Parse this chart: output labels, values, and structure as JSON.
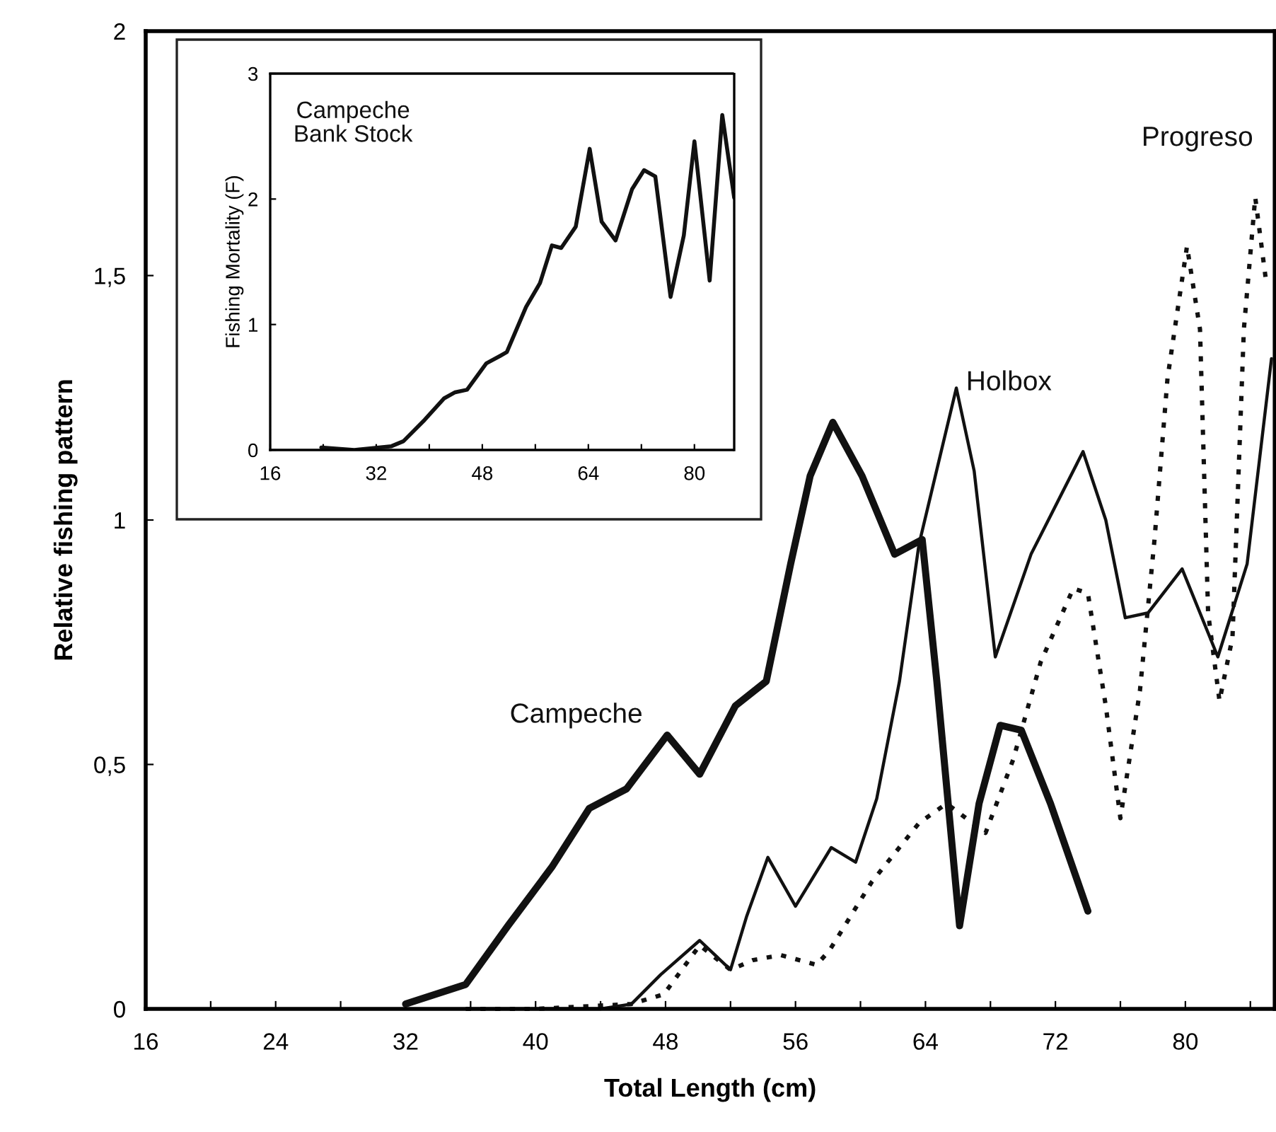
{
  "chart_data": [
    {
      "type": "line",
      "xlabel": "Total Length (cm)",
      "ylabel": "Relative fishing pattern",
      "xlim": [
        16,
        85.5
      ],
      "ylim": [
        0,
        2
      ],
      "xticks": [
        16,
        {
          "value": 20,
          "label": null
        },
        24,
        {
          "value": 28,
          "label": null
        },
        32,
        {
          "value": 36,
          "label": null
        },
        40,
        {
          "value": 44,
          "label": null
        },
        48,
        {
          "value": 52,
          "label": null
        },
        56,
        {
          "value": 60,
          "label": null
        },
        64,
        {
          "value": 68,
          "label": null
        },
        72,
        {
          "value": 76,
          "label": null
        },
        80,
        {
          "value": 84,
          "label": null
        }
      ],
      "yticks": [
        0,
        {
          "value": 0.5,
          "label": "0,5"
        },
        1,
        {
          "value": 1.5,
          "label": "1,5"
        },
        2
      ],
      "grid": false,
      "legend": false,
      "marker": "none",
      "series": [
        {
          "name": "Campeche",
          "color": "#111111",
          "line_style": "solid",
          "x": [
            32.0,
            35.7,
            38.3,
            41.0,
            43.3,
            45.6,
            48.1,
            50.1,
            52.3,
            54.2,
            55.7,
            56.9,
            58.3,
            60.1,
            62.1,
            63.8,
            64.7,
            66.1,
            67.3,
            68.6,
            69.9,
            71.7,
            74.0
          ],
          "values": [
            0.01,
            0.05,
            0.17,
            0.29,
            0.41,
            0.45,
            0.56,
            0.48,
            0.62,
            0.67,
            0.91,
            1.09,
            1.2,
            1.09,
            0.93,
            0.96,
            0.67,
            0.17,
            0.42,
            0.58,
            0.57,
            0.42,
            0.2
          ]
        },
        {
          "name": "Holbox",
          "color": "#111111",
          "line_style": "solid",
          "x": [
            36.0,
            40.0,
            44.0,
            45.9,
            47.7,
            50.1,
            52.0,
            53.0,
            54.3,
            56.0,
            58.2,
            59.7,
            61.0,
            62.4,
            63.6,
            65.9,
            67.0,
            68.3,
            70.5,
            73.7,
            75.1,
            76.3,
            77.7,
            79.8,
            82.0,
            83.8,
            85.3
          ],
          "values": [
            0.0,
            0.0,
            0.0,
            0.01,
            0.07,
            0.14,
            0.08,
            0.19,
            0.31,
            0.21,
            0.33,
            0.3,
            0.43,
            0.67,
            0.95,
            1.27,
            1.1,
            0.72,
            0.93,
            1.14,
            1.0,
            0.8,
            0.81,
            0.9,
            0.72,
            0.91,
            1.33
          ]
        },
        {
          "name": "Progreso",
          "color": "#111111",
          "line_style": "dotted",
          "x": [
            35.7,
            40.0,
            45.9,
            47.9,
            50.1,
            52.0,
            53.4,
            55.1,
            57.3,
            58.1,
            60.7,
            63.6,
            65.3,
            67.7,
            69.4,
            71.1,
            73.1,
            74.0,
            75.1,
            76.0,
            77.2,
            78.1,
            78.9,
            80.1,
            80.9,
            81.4,
            82.1,
            82.9,
            83.6,
            84.3,
            85.0
          ],
          "values": [
            0.0,
            0.0,
            0.01,
            0.03,
            0.13,
            0.08,
            0.1,
            0.11,
            0.09,
            0.12,
            0.26,
            0.38,
            0.42,
            0.36,
            0.51,
            0.71,
            0.86,
            0.85,
            0.62,
            0.39,
            0.65,
            0.96,
            1.29,
            1.56,
            1.39,
            0.81,
            0.63,
            0.76,
            1.39,
            1.66,
            1.48
          ]
        }
      ]
    },
    {
      "type": "line",
      "ylabel": "Fishing Mortality (F)",
      "xlim": [
        16,
        86
      ],
      "ylim": [
        0,
        3
      ],
      "xticks": [
        16,
        {
          "value": 24,
          "label": null
        },
        32,
        {
          "value": 40,
          "label": null
        },
        48,
        {
          "value": 56,
          "label": null
        },
        64,
        {
          "value": 72,
          "label": null
        },
        80
      ],
      "yticks": [
        0,
        1,
        2,
        3
      ],
      "grid": false,
      "legend": false,
      "marker": "none",
      "series": [
        {
          "name": "Campeche\nBank Stock",
          "color": "#111111",
          "line_style": "solid",
          "x": [
            23.7,
            28.7,
            34.3,
            36.1,
            39.3,
            42.2,
            43.9,
            45.7,
            48.6,
            50.7,
            51.7,
            54.6,
            56.7,
            58.5,
            59.9,
            62.1,
            64.2,
            66.0,
            68.1,
            70.6,
            72.4,
            74.1,
            76.4,
            78.4,
            80.0,
            82.3,
            84.2,
            86.0
          ],
          "values": [
            0.02,
            0.0,
            0.03,
            0.07,
            0.24,
            0.41,
            0.46,
            0.48,
            0.69,
            0.75,
            0.78,
            1.14,
            1.33,
            1.63,
            1.61,
            1.78,
            2.4,
            1.82,
            1.67,
            2.08,
            2.23,
            2.18,
            1.22,
            1.71,
            2.46,
            1.35,
            2.67,
            2.01
          ]
        }
      ]
    }
  ]
}
